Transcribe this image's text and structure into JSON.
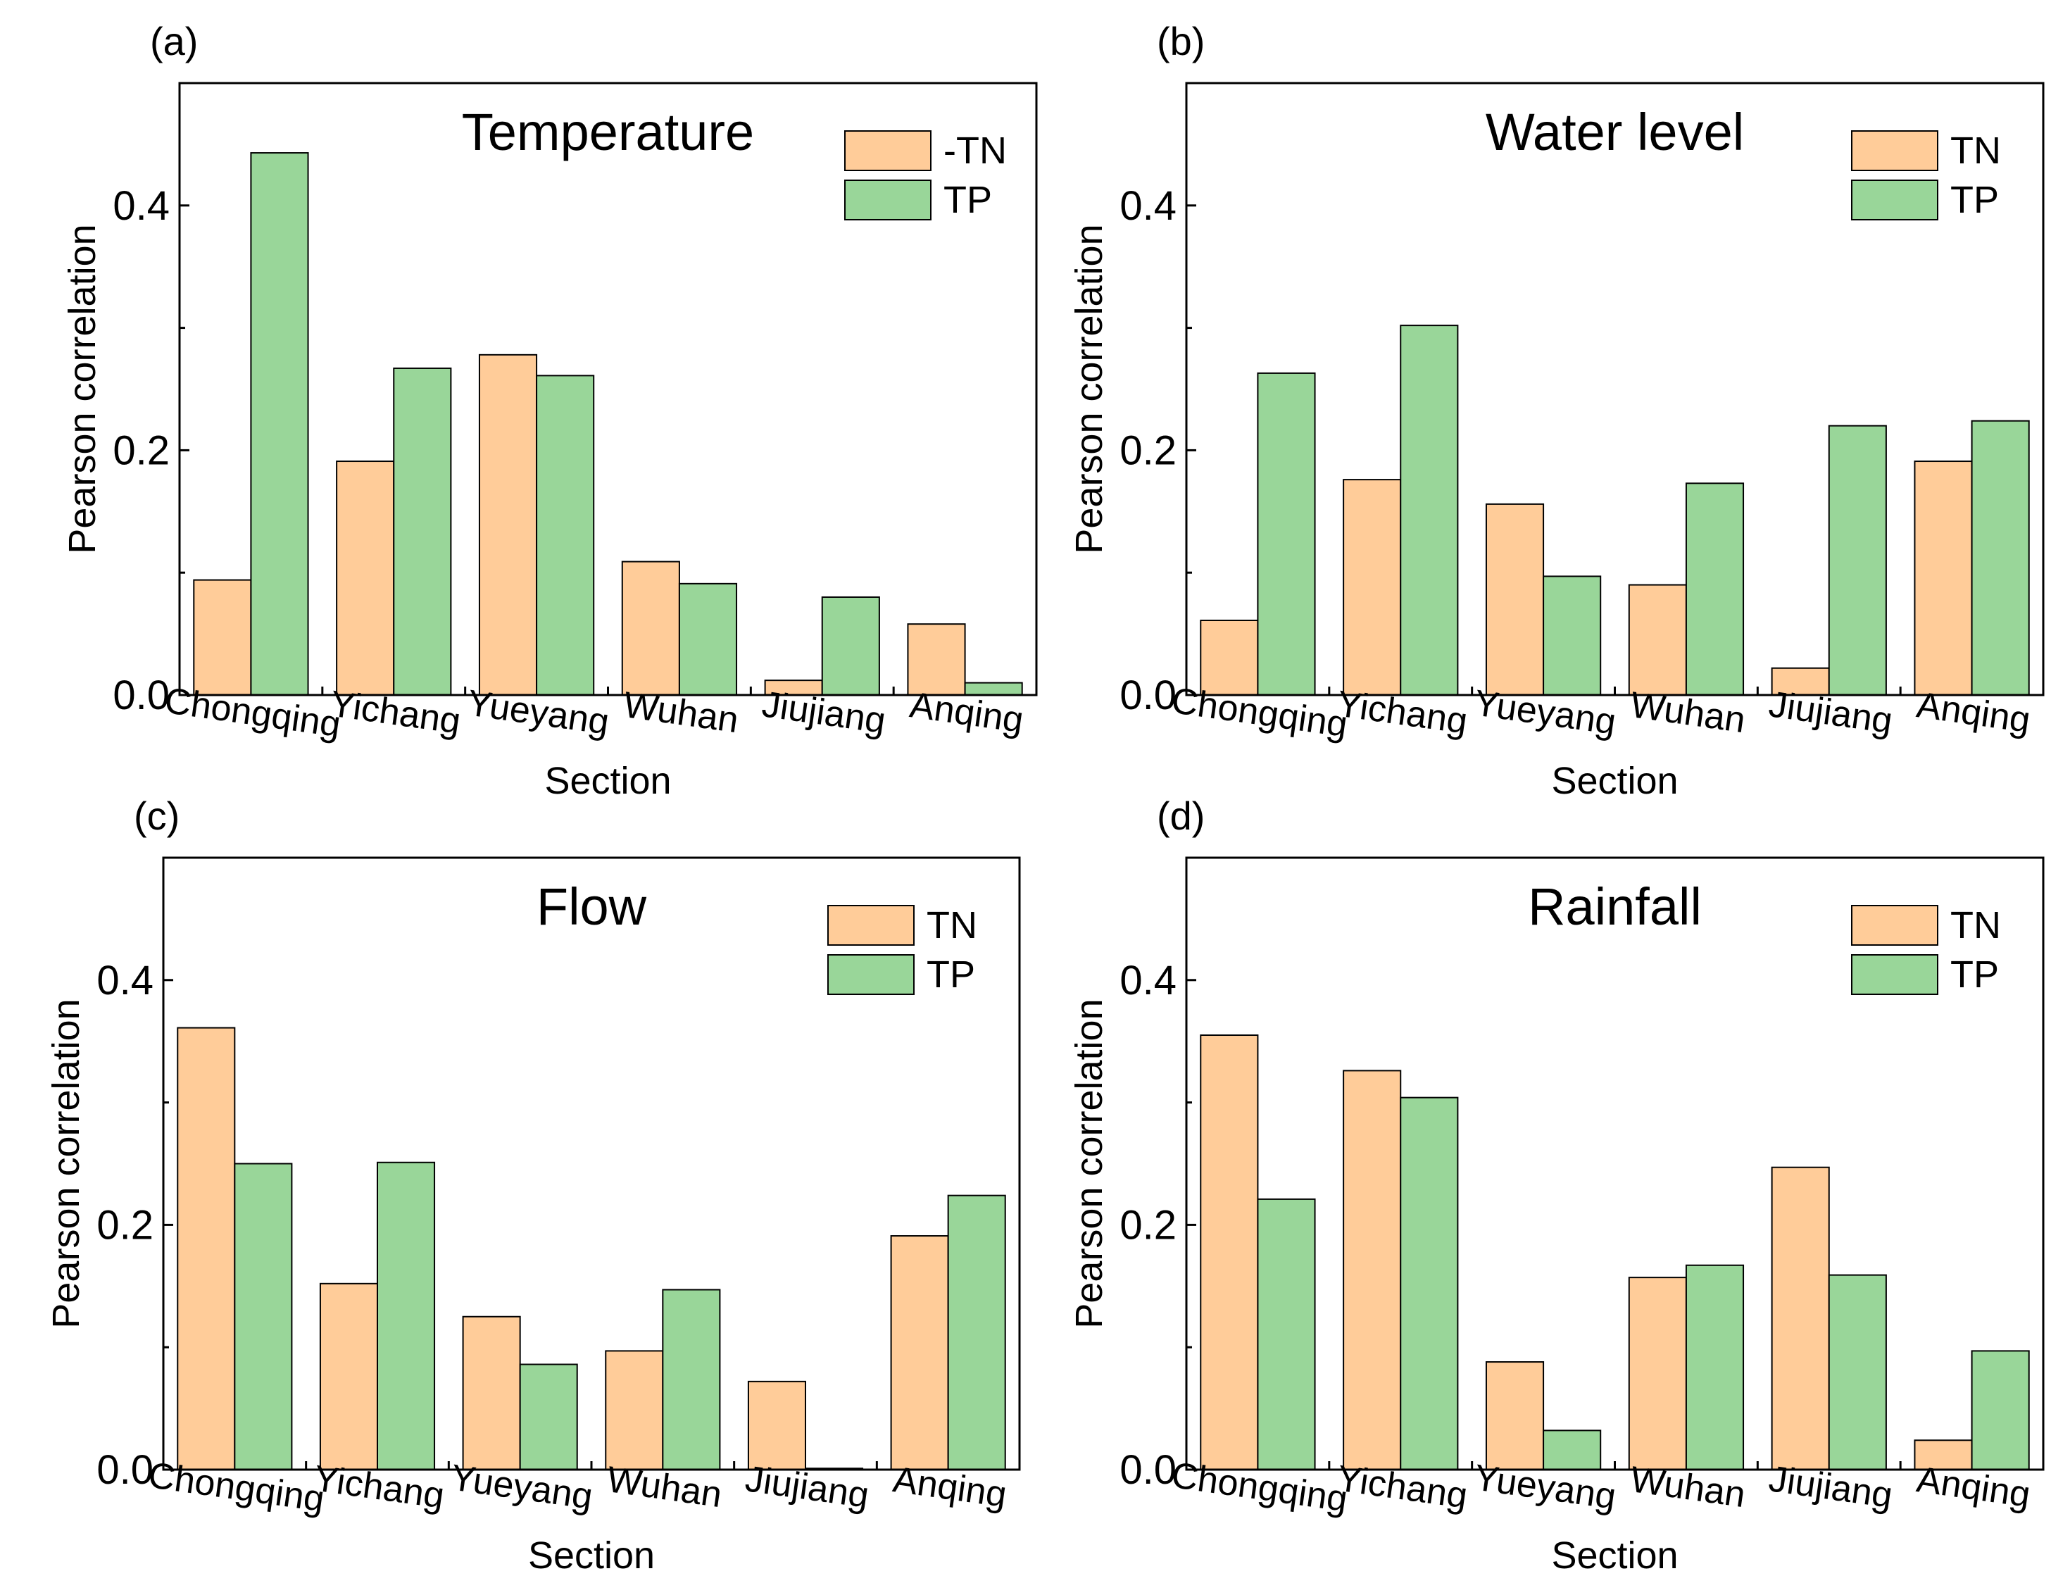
{
  "colors": {
    "tn": "#FFCC99",
    "tp": "#99D699",
    "stroke": "#000000"
  },
  "chart_data": [
    {
      "type": "bar",
      "panel": "(a)",
      "title": "Temperature",
      "xlabel": "Section",
      "ylabel": "Pearson correlation",
      "ylim": [
        0,
        0.5
      ],
      "yticks": [
        "0.0",
        "0.2",
        "0.4"
      ],
      "legend_position": "top-right",
      "categories": [
        "Chongqing",
        "Yichang",
        "Yueyang",
        "Wuhan",
        "Jiujiang",
        "Anqing"
      ],
      "series": [
        {
          "name": "-TN",
          "color": "#FFCC99",
          "values": [
            0.094,
            0.191,
            0.278,
            0.109,
            0.012,
            0.058
          ]
        },
        {
          "name": "TP",
          "color": "#99D699",
          "values": [
            0.443,
            0.267,
            0.261,
            0.091,
            0.08,
            0.01
          ]
        }
      ]
    },
    {
      "type": "bar",
      "panel": "(b)",
      "title": "Water level",
      "xlabel": "Section",
      "ylabel": "Pearson correlation",
      "ylim": [
        0,
        0.5
      ],
      "yticks": [
        "0.0",
        "0.2",
        "0.4"
      ],
      "legend_position": "top-right",
      "categories": [
        "Chongqing",
        "Yichang",
        "Yueyang",
        "Wuhan",
        "Jiujiang",
        "Anqing"
      ],
      "series": [
        {
          "name": "TN",
          "color": "#FFCC99",
          "values": [
            0.061,
            0.176,
            0.156,
            0.09,
            0.022,
            0.191
          ]
        },
        {
          "name": "TP",
          "color": "#99D699",
          "values": [
            0.263,
            0.302,
            0.097,
            0.173,
            0.22,
            0.224
          ]
        }
      ]
    },
    {
      "type": "bar",
      "panel": "(c)",
      "title": "Flow",
      "xlabel": "Section",
      "ylabel": "Pearson correlation",
      "ylim": [
        0,
        0.5
      ],
      "yticks": [
        "0.0",
        "0.2",
        "0.4"
      ],
      "legend_position": "top-right",
      "categories": [
        "Chongqing",
        "Yichang",
        "Yueyang",
        "Wuhan",
        "Jiujiang",
        "Anqing"
      ],
      "series": [
        {
          "name": "TN",
          "color": "#FFCC99",
          "values": [
            0.361,
            0.152,
            0.125,
            0.097,
            0.072,
            0.191
          ]
        },
        {
          "name": "TP",
          "color": "#99D699",
          "values": [
            0.25,
            0.251,
            0.086,
            0.147,
            0.001,
            0.224
          ]
        }
      ]
    },
    {
      "type": "bar",
      "panel": "(d)",
      "title": "Rainfall",
      "xlabel": "Section",
      "ylabel": "Pearson correlation",
      "ylim": [
        0,
        0.5
      ],
      "yticks": [
        "0.0",
        "0.2",
        "0.4"
      ],
      "legend_position": "top-right",
      "categories": [
        "Chongqing",
        "Yichang",
        "Yueyang",
        "Wuhan",
        "Jiujiang",
        "Anqing"
      ],
      "series": [
        {
          "name": "TN",
          "color": "#FFCC99",
          "values": [
            0.355,
            0.326,
            0.088,
            0.157,
            0.247,
            0.024
          ]
        },
        {
          "name": "TP",
          "color": "#99D699",
          "values": [
            0.221,
            0.304,
            0.032,
            0.167,
            0.159,
            0.097
          ]
        }
      ]
    }
  ]
}
